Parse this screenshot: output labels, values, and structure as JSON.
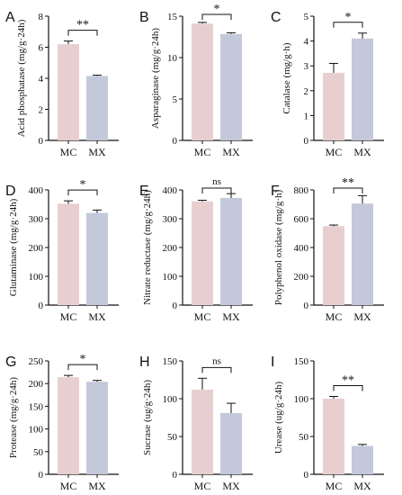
{
  "figure": {
    "colors": {
      "MC": "#e8cfcf",
      "MX": "#c3c9da",
      "axis": "#111111"
    }
  },
  "chart_data": [
    {
      "panel": "A",
      "type": "bar",
      "ylabel": "Acid phosphatase (mg/g·24h)",
      "categories": [
        "MC",
        "MX"
      ],
      "values": [
        6.2,
        4.15
      ],
      "errors": [
        0.2,
        0.05
      ],
      "ylim": [
        0,
        8
      ],
      "yticks": [
        "0",
        "2",
        "4",
        "6",
        "8"
      ],
      "significance": "**"
    },
    {
      "panel": "B",
      "type": "bar",
      "ylabel": "Asparaginase (mg/g·24h)",
      "categories": [
        "MC",
        "MX"
      ],
      "values": [
        14.1,
        12.85
      ],
      "errors": [
        0.15,
        0.15
      ],
      "ylim": [
        0,
        15
      ],
      "yticks": [
        "0",
        "5",
        "10",
        "15"
      ],
      "significance": "*"
    },
    {
      "panel": "C",
      "type": "bar",
      "ylabel": "Catalase (mg/g·h)",
      "categories": [
        "MC",
        "MX"
      ],
      "values": [
        2.72,
        4.1
      ],
      "errors": [
        0.38,
        0.22
      ],
      "ylim": [
        0,
        5
      ],
      "yticks": [
        "0",
        "1",
        "2",
        "3",
        "4",
        "5"
      ],
      "significance": "*"
    },
    {
      "panel": "D",
      "type": "bar",
      "ylabel": "Glutaminase (mg/g·24h)",
      "categories": [
        "MC",
        "MX"
      ],
      "values": [
        352,
        320
      ],
      "errors": [
        10,
        10
      ],
      "ylim": [
        0,
        400
      ],
      "yticks": [
        "0",
        "100",
        "200",
        "300",
        "400"
      ],
      "significance": "*"
    },
    {
      "panel": "E",
      "type": "bar",
      "ylabel": "Nitrate reductase (mg/g·24h)",
      "categories": [
        "MC",
        "MX"
      ],
      "values": [
        360,
        372
      ],
      "errors": [
        4,
        15
      ],
      "ylim": [
        0,
        400
      ],
      "yticks": [
        "0",
        "100",
        "200",
        "300",
        "400"
      ],
      "significance": "ns"
    },
    {
      "panel": "F",
      "type": "bar",
      "ylabel": "Polyphenol oxidase (mg/g·h)",
      "categories": [
        "MC",
        "MX"
      ],
      "values": [
        548,
        705
      ],
      "errors": [
        8,
        55
      ],
      "ylim": [
        0,
        800
      ],
      "yticks": [
        "0",
        "200",
        "400",
        "600",
        "800"
      ],
      "significance": "**"
    },
    {
      "panel": "G",
      "type": "bar",
      "ylabel": "Protease (mg/g·24h)",
      "categories": [
        "MC",
        "MX"
      ],
      "values": [
        214,
        204
      ],
      "errors": [
        4,
        3
      ],
      "ylim": [
        0,
        250
      ],
      "yticks": [
        "0",
        "50",
        "100",
        "150",
        "200",
        "250"
      ],
      "significance": "*"
    },
    {
      "panel": "H",
      "type": "bar",
      "ylabel": "Sucrase (ug/g·24h)",
      "categories": [
        "MC",
        "MX"
      ],
      "values": [
        112,
        81
      ],
      "errors": [
        15,
        13
      ],
      "ylim": [
        0,
        150
      ],
      "yticks": [
        "0",
        "50",
        "100",
        "150"
      ],
      "significance": "ns"
    },
    {
      "panel": "I",
      "type": "bar",
      "ylabel": "Urease (ug/g·24h)",
      "categories": [
        "MC",
        "MX"
      ],
      "values": [
        100,
        37.5
      ],
      "errors": [
        3,
        2
      ],
      "ylim": [
        0,
        150
      ],
      "yticks": [
        "0",
        "50",
        "100",
        "150"
      ],
      "significance": "**"
    }
  ]
}
